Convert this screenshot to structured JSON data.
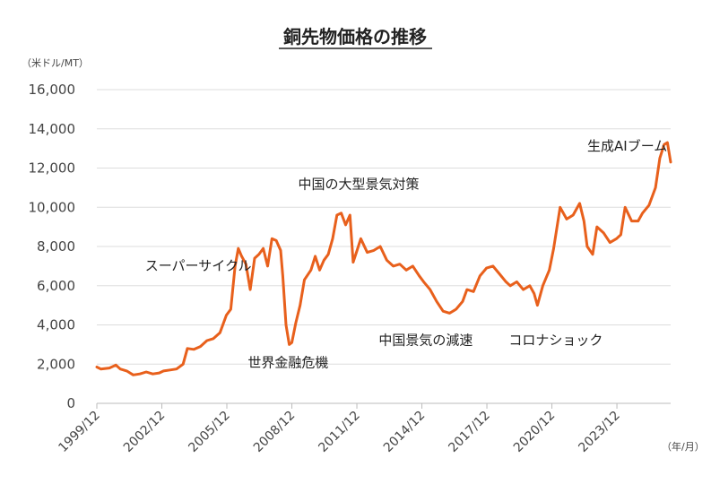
{
  "chart_data": {
    "type": "line",
    "title": "銅先物価格の推移",
    "y_unit": "（米ドル/MT）",
    "x_unit": "（年/月）",
    "ylim": [
      0,
      16000
    ],
    "y_ticks": [
      "0",
      "2,000",
      "4,000",
      "6,000",
      "8,000",
      "10,000",
      "12,000",
      "14,000",
      "16,000"
    ],
    "y_tick_values": [
      0,
      2000,
      4000,
      6000,
      8000,
      10000,
      12000,
      14000,
      16000
    ],
    "x_ticks": [
      "1999/12",
      "2002/12",
      "2005/12",
      "2008/12",
      "2011/12",
      "2014/12",
      "2017/12",
      "2020/12",
      "2023/12"
    ],
    "x_tick_values": [
      1999.92,
      2002.92,
      2005.92,
      2008.92,
      2011.92,
      2014.92,
      2017.92,
      2020.92,
      2023.92
    ],
    "xlim": [
      1999.92,
      2026.4
    ],
    "grid": "horizontal",
    "series_color": "#e8601c",
    "series": [
      {
        "x": [
          1999.92,
          2000.1,
          2000.5,
          2000.8,
          2001.0,
          2001.3,
          2001.6,
          2001.9,
          2002.2,
          2002.5,
          2002.8,
          2003.0,
          2003.3,
          2003.6,
          2003.9,
          2004.1,
          2004.4,
          2004.7,
          2005.0,
          2005.3,
          2005.6,
          2005.9,
          2006.1,
          2006.3,
          2006.45,
          2006.6,
          2006.8,
          2007.0,
          2007.2,
          2007.4,
          2007.6,
          2007.8,
          2008.0,
          2008.2,
          2008.4,
          2008.5,
          2008.65,
          2008.8,
          2008.92,
          2009.1,
          2009.3,
          2009.5,
          2009.8,
          2010.0,
          2010.2,
          2010.4,
          2010.6,
          2010.8,
          2011.0,
          2011.2,
          2011.4,
          2011.6,
          2011.75,
          2011.9,
          2012.1,
          2012.4,
          2012.7,
          2013.0,
          2013.3,
          2013.6,
          2013.9,
          2014.2,
          2014.5,
          2014.8,
          2015.0,
          2015.3,
          2015.6,
          2015.9,
          2016.2,
          2016.5,
          2016.8,
          2017.0,
          2017.3,
          2017.6,
          2017.9,
          2018.2,
          2018.5,
          2018.8,
          2019.0,
          2019.3,
          2019.6,
          2019.9,
          2020.1,
          2020.25,
          2020.5,
          2020.8,
          2021.0,
          2021.3,
          2021.6,
          2021.9,
          2022.2,
          2022.4,
          2022.55,
          2022.8,
          2023.0,
          2023.3,
          2023.6,
          2023.9,
          2024.1,
          2024.3,
          2024.6,
          2024.9,
          2025.1,
          2025.4,
          2025.7,
          2025.9,
          2026.1,
          2026.25,
          2026.4
        ],
        "values": [
          1850,
          1750,
          1800,
          1950,
          1750,
          1650,
          1450,
          1500,
          1600,
          1500,
          1550,
          1650,
          1700,
          1750,
          2000,
          2800,
          2750,
          2900,
          3200,
          3300,
          3600,
          4500,
          4800,
          7000,
          7900,
          7500,
          7100,
          5800,
          7400,
          7600,
          7900,
          7000,
          8400,
          8300,
          7800,
          6500,
          4000,
          3000,
          3100,
          4100,
          5000,
          6300,
          6800,
          7500,
          6800,
          7300,
          7600,
          8400,
          9600,
          9700,
          9100,
          9600,
          7200,
          7700,
          8400,
          7700,
          7800,
          8000,
          7300,
          7000,
          7100,
          6800,
          7000,
          6500,
          6200,
          5800,
          5200,
          4700,
          4600,
          4800,
          5200,
          5800,
          5700,
          6500,
          6900,
          7000,
          6600,
          6200,
          6000,
          6200,
          5800,
          6000,
          5600,
          5000,
          6000,
          6800,
          7900,
          10000,
          9400,
          9600,
          10200,
          9300,
          8000,
          7600,
          9000,
          8700,
          8200,
          8400,
          8600,
          10000,
          9300,
          9300,
          9700,
          10100,
          11000,
          12500,
          13200,
          13300,
          12300
        ]
      }
    ],
    "annotations": [
      {
        "text": "スーパーサイクル",
        "x": 2004.6,
        "y": 6800
      },
      {
        "text": "世界金融危機",
        "x": 2008.75,
        "y": 1850
      },
      {
        "text": "中国の大型景気対策",
        "x": 2012.0,
        "y": 10950
      },
      {
        "text": "中国景気の減速",
        "x": 2015.1,
        "y": 3000
      },
      {
        "text": "コロナショック",
        "x": 2021.1,
        "y": 3000
      },
      {
        "text": "生成AIブーム",
        "x": 2024.4,
        "y": 12900
      }
    ]
  }
}
